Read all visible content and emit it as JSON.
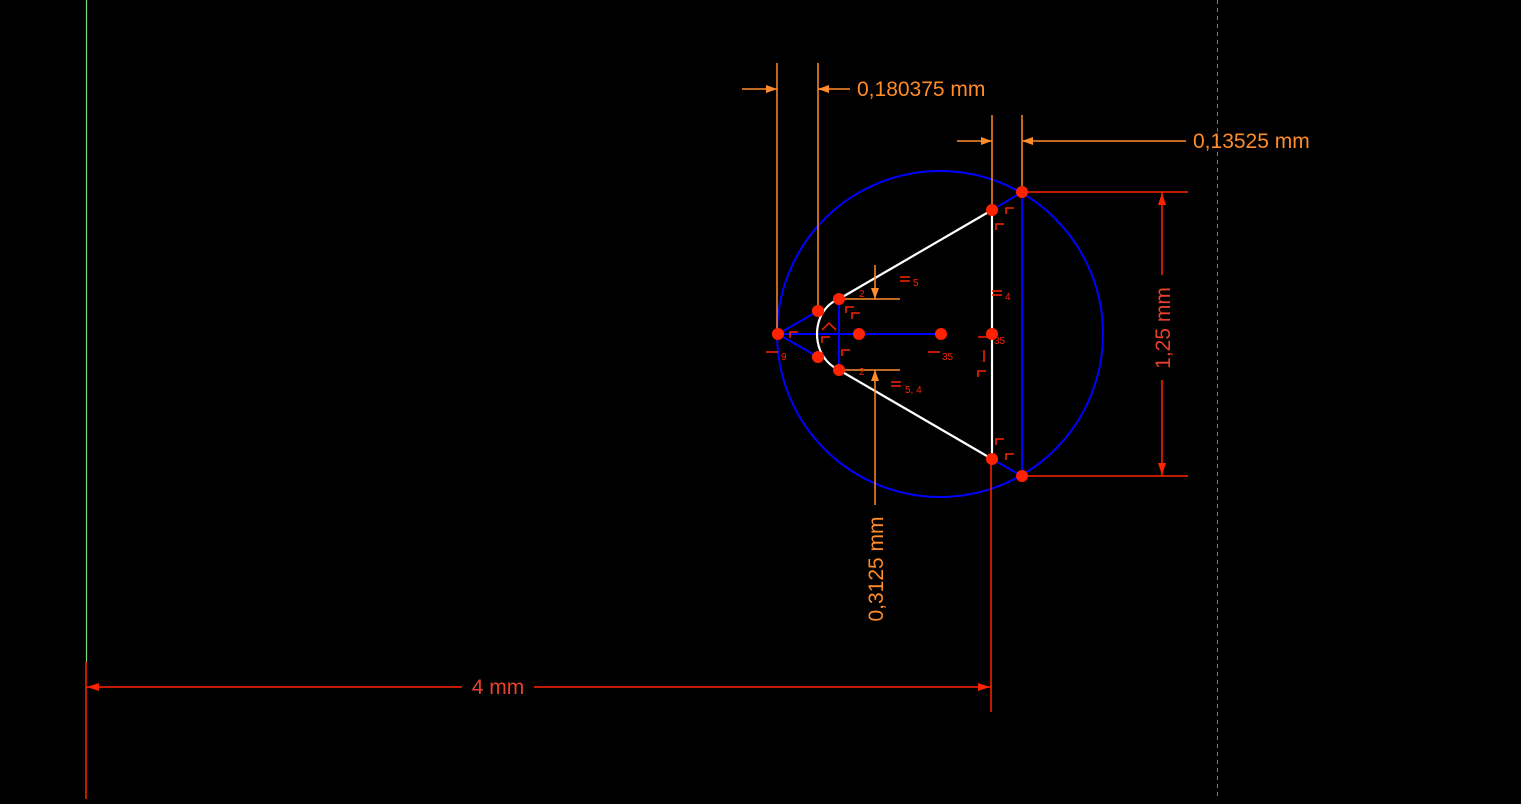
{
  "sketch": {
    "colors": {
      "background": "#000000",
      "construction": "#0000ff",
      "geometry": "#ffffff",
      "constraint": "#ff2200",
      "dimension": "#ff8c2a",
      "axis_vertical": "#7fd77f",
      "guide": "#777777"
    },
    "dimensions": {
      "top_width": "0,180375 mm",
      "right_width": "0,13525 mm",
      "height": "1,25 mm",
      "tip_height": "0,3125 mm",
      "horizontal_distance": "4 mm"
    },
    "constraint_labels": {
      "eq_top": "5",
      "eq_right": "4",
      "eq_bottom": "5, 4",
      "index_9": "9",
      "index_2_top": "2",
      "index_2_bottom": "2",
      "index_35": "35",
      "index_35b": "35"
    }
  }
}
